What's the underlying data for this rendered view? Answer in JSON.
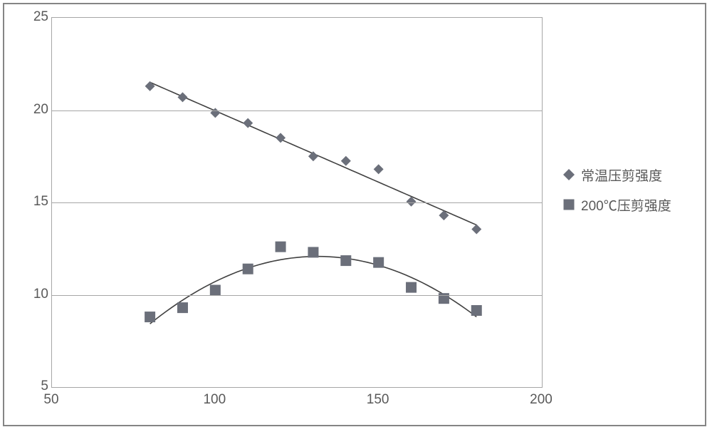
{
  "chart": {
    "type": "scatter-with-trendlines",
    "background_color": "#ffffff",
    "outer_border_color": "#858585",
    "plot_border_color": "#a6a6a6",
    "grid_color": "#a6a6a6",
    "tick_font_size": 19,
    "tick_color": "#595959",
    "x_axis": {
      "min": 50,
      "max": 200,
      "ticks": [
        50,
        100,
        150,
        200
      ]
    },
    "y_axis": {
      "min": 5,
      "max": 25,
      "ticks": [
        5,
        10,
        15,
        20,
        25
      ]
    },
    "series": [
      {
        "id": "rt_shear",
        "label": "常温压剪强度",
        "marker_shape": "diamond",
        "marker_color": "#6b6f7a",
        "marker_size": 14,
        "trend_color": "#404040",
        "trend_width": 1.6,
        "trend_type": "linear",
        "x": [
          80,
          90,
          100,
          110,
          120,
          130,
          140,
          150,
          160,
          170,
          180
        ],
        "y": [
          21.3,
          20.7,
          19.85,
          19.3,
          18.5,
          17.5,
          17.25,
          16.8,
          15.05,
          14.3,
          13.55
        ]
      },
      {
        "id": "ht_shear",
        "label": "200℃压剪强度",
        "marker_shape": "square",
        "marker_color": "#6b6f7a",
        "marker_size": 15,
        "trend_color": "#404040",
        "trend_width": 1.6,
        "trend_type": "poly2",
        "x": [
          80,
          90,
          100,
          110,
          120,
          130,
          140,
          150,
          160,
          170,
          180
        ],
        "y": [
          8.8,
          9.3,
          10.25,
          11.4,
          12.6,
          12.3,
          11.85,
          11.75,
          10.4,
          9.8,
          9.15
        ]
      }
    ],
    "legend": {
      "items": [
        {
          "series_id": "rt_shear",
          "label": "常温压剪强度"
        },
        {
          "series_id": "ht_shear",
          "label": "200℃压剪强度"
        }
      ]
    }
  }
}
